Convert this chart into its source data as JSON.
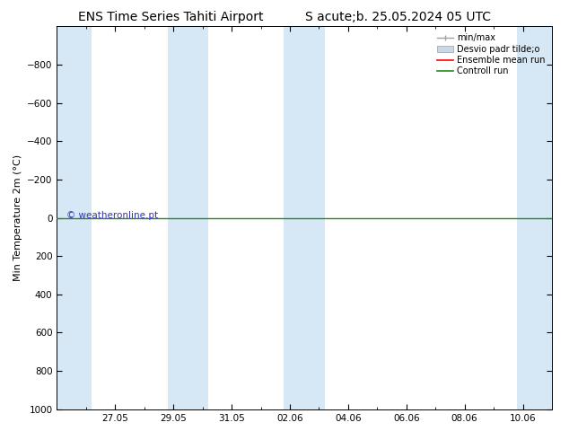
{
  "title_left": "ENS Time Series Tahiti Airport",
  "title_right": "S acute;b. 25.05.2024 05 UTC",
  "ylabel": "Min Temperature 2m (°C)",
  "ylim_bottom": 1000,
  "ylim_top": -1000,
  "yticks": [
    -800,
    -600,
    -400,
    -200,
    0,
    200,
    400,
    600,
    800,
    1000
  ],
  "x_dates": [
    "27.05",
    "29.05",
    "31.05",
    "02.06",
    "04.06",
    "06.06",
    "08.06",
    "10.06"
  ],
  "x_tick_vals": [
    2.0,
    4.0,
    6.0,
    8.0,
    10.0,
    12.0,
    14.0,
    16.0
  ],
  "x_min": 0.0,
  "x_max": 17.0,
  "shaded_bands_x": [
    [
      0.0,
      1.2
    ],
    [
      3.8,
      5.2
    ],
    [
      7.8,
      9.2
    ],
    [
      15.8,
      17.0
    ]
  ],
  "band_color": "#d6e8f5",
  "background_color": "#ffffff",
  "control_run_y": 0.0,
  "control_run_color": "#228B22",
  "ensemble_mean_color": "#ff0000",
  "minmax_color": "#a0a0a0",
  "stddev_color": "#c8d8e8",
  "watermark": "© weatheronline.pt",
  "watermark_color": "#3333bb",
  "watermark_fontsize": 7.5,
  "legend_labels": [
    "min/max",
    "Desvio padr tilde;o",
    "Ensemble mean run",
    "Controll run"
  ],
  "legend_colors": [
    "#a0a0a0",
    "#c8d8e8",
    "#ff0000",
    "#228B22"
  ],
  "title_fontsize": 10,
  "tick_fontsize": 7.5,
  "ylabel_fontsize": 8
}
